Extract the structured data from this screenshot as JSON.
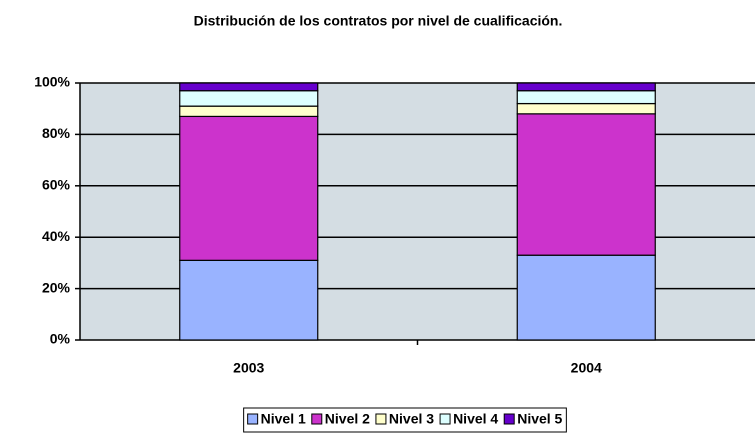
{
  "chart_data": {
    "type": "stacked_bar",
    "title": "Distribución de los contratos por nivel de cualificación.",
    "categories": [
      "2003",
      "2004"
    ],
    "series": [
      {
        "name": "Nivel 1",
        "color": "#99b3ff",
        "values": [
          31,
          33
        ]
      },
      {
        "name": "Nivel 2",
        "color": "#cc33cc",
        "values": [
          56,
          55
        ]
      },
      {
        "name": "Nivel 3",
        "color": "#ffffcc",
        "values": [
          4,
          4
        ]
      },
      {
        "name": "Nivel 4",
        "color": "#ddffff",
        "values": [
          6,
          5
        ]
      },
      {
        "name": "Nivel 5",
        "color": "#6600cc",
        "values": [
          3,
          3
        ]
      }
    ],
    "ylim": [
      0,
      100
    ],
    "yticks": [
      {
        "value": 0,
        "label": "0%"
      },
      {
        "value": 20,
        "label": "20%"
      },
      {
        "value": 40,
        "label": "40%"
      },
      {
        "value": 60,
        "label": "60%"
      },
      {
        "value": 80,
        "label": "80%"
      },
      {
        "value": 100,
        "label": "100%"
      }
    ],
    "grid": true,
    "legend": "bottom"
  }
}
